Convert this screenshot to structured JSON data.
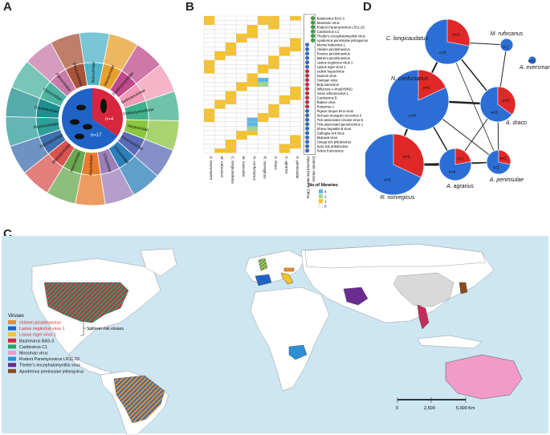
{
  "panels": {
    "a": "A",
    "b": "B",
    "c": "C",
    "d": "D"
  },
  "panel_a": {
    "center_counts": [
      "n=4",
      "n=17"
    ],
    "families": [
      "Nairoviridae",
      "Hantaviridae",
      "Paramyxoviridae",
      "Sedoreoviridae",
      "Orthomyxoviridae",
      "Hepeviridae",
      "Picornaviridae",
      "Circoviridae",
      "Chuviridae",
      "Flaviviridae",
      "Astroviridae",
      "Rhabdoviridae",
      "Polycipiviridae",
      "Picornaviridae",
      "Coronaviridae",
      "Circoviridae",
      "Parvoviridae",
      "Phenuiviridae"
    ]
  },
  "panel_b": {
    "hosts": [
      "A. eversmanni",
      "M. rufocanus",
      "C. longicaudatus",
      "M. musculus",
      "N. confucianus",
      "R. norvegicus",
      "A. draco",
      "A. agrarius",
      "A. peninsulae"
    ],
    "viruses": [
      "Bastrovirus BAS-3",
      "Mossman virus",
      "Rodent Paramyxovirus LR11-23",
      "Cardiovirus C1",
      "Theiler's encephalomyelitis virus",
      "Apodemus peninsulae jeilongvirus",
      "Murine kobuvirus 1",
      "chicken picobirnavirus",
      "Porcine picobirnavirus",
      "Marmot picobirnavirus",
      "Lasius neglectus virus 1",
      "Lasius niger virus 1",
      "rodent hepacivirus",
      "Nuomin virus",
      "Hantaan virus",
      "Beiji nairovirus",
      "Influenza A virus(H9N2)",
      "Avian orthoreovirus 1",
      "Cardiovirus B",
      "Rabies virus",
      "Rotavirus A",
      "Pigeon torque teno virus",
      "Sichuan mosquito circovirus 3",
      "Tick-associated circular virus-6",
      "Tick-associated genomovirus 1",
      "Shrew hepatitis B virus",
      "Gakugsa tick virus",
      "Mukawa virus",
      "Onega tick phlebovirus",
      "Sara tick phlebovirus",
      "Feline frumnivirus"
    ],
    "column_headers": [
      "Detected first time in China",
      "Zoonotic viruses"
    ],
    "legend_title": "No.of libraries",
    "legend_values": [
      "4",
      "2",
      "1",
      "0"
    ]
  },
  "panel_d": {
    "nodes": [
      {
        "label": "C. longicaudatus",
        "n_total": "n=6",
        "n_red": "n=2"
      },
      {
        "label": "M. rufocanus",
        "n_total": "n=1"
      },
      {
        "label": "A. eversmanni",
        "n_total": "n=1"
      },
      {
        "label": "N. confucianus",
        "n_total": "n=9",
        "n_red": "n=2"
      },
      {
        "label": "A. draco",
        "n_total": "n=3",
        "n_red": "n=2"
      },
      {
        "label": "R. norvegicus",
        "n_total": "n=5",
        "n_red": "n=3"
      },
      {
        "label": "A. agrarius",
        "n_total": "n=4",
        "n_red": "n=1"
      },
      {
        "label": "A. peninsulae",
        "n_total": "n=2",
        "n_red": "n=1"
      }
    ]
  },
  "panel_c": {
    "legend_title": "Viruses",
    "legend_items": [
      {
        "label": "chicken picobirnavirus",
        "color": "#f28c28",
        "red": true
      },
      {
        "label": "Lasius neglectus virus 1",
        "color": "#1f63c6",
        "red": true
      },
      {
        "label": "Lasius niger virus 1",
        "color": "#f2c230",
        "red": true
      },
      {
        "label": "Bastrovirus BAS-3",
        "color": "#d7263d",
        "red": false
      },
      {
        "label": "Cardiovirus C1",
        "color": "#1fa36b",
        "red": false
      },
      {
        "label": "Mossman virus",
        "color": "#f29bc9",
        "red": false
      },
      {
        "label": "Rodent Paramyxovirus LR11-23",
        "color": "#2c8fd6",
        "red": false
      },
      {
        "label": "Theiler's encephalomyelitis virus",
        "color": "#6a2c91",
        "red": false
      },
      {
        "label": "Apodemus peninsulae jeilongvirus",
        "color": "#8b4a1f",
        "red": false
      }
    ],
    "bracket_label": "Spillover-risk viruses",
    "scale_labels": [
      "0",
      "2,500",
      "5,000 Km"
    ]
  }
}
